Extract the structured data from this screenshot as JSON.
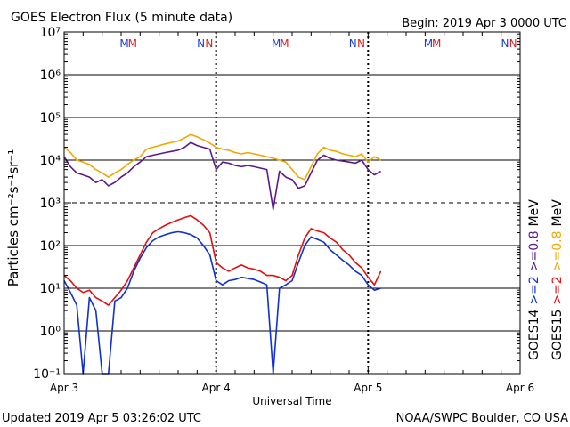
{
  "chart_data": {
    "type": "line",
    "title": "GOES Electron Flux (5 minute data)",
    "begin_label": "Begin: 2019 Apr 3 0000 UTC",
    "xlabel": "Universal Time",
    "ylabel": "Particles cm⁻²s⁻¹sr⁻¹",
    "yscale": "log",
    "ylim": [
      0.1,
      10000000
    ],
    "xlim_hours": [
      0,
      72
    ],
    "y_ticks": [
      {
        "label": "10⁻¹",
        "value": 0.1
      },
      {
        "label": "10⁰",
        "value": 1
      },
      {
        "label": "10¹",
        "value": 10
      },
      {
        "label": "10²",
        "value": 100
      },
      {
        "label": "10³",
        "value": 1000
      },
      {
        "label": "10⁴",
        "value": 10000
      },
      {
        "label": "10⁵",
        "value": 100000
      },
      {
        "label": "10⁶",
        "value": 1000000
      },
      {
        "label": "10⁷",
        "value": 10000000
      }
    ],
    "x_ticks": [
      {
        "label": "Apr 3",
        "hour": 0
      },
      {
        "label": "Apr 4",
        "hour": 24
      },
      {
        "label": "Apr 5",
        "hour": 48
      },
      {
        "label": "Apr 6",
        "hour": 72
      }
    ],
    "threshold_line": 1000,
    "day_markers": [
      {
        "hour": 9.5,
        "text": "M",
        "color": "#1a3fd6"
      },
      {
        "hour": 10.8,
        "text": "M",
        "color": "#e02020"
      },
      {
        "hour": 21.6,
        "text": "N",
        "color": "#1a3fd6"
      },
      {
        "hour": 22.9,
        "text": "N",
        "color": "#e02020"
      },
      {
        "hour": 33.5,
        "text": "M",
        "color": "#1a3fd6"
      },
      {
        "hour": 34.8,
        "text": "M",
        "color": "#e02020"
      },
      {
        "hour": 45.6,
        "text": "N",
        "color": "#1a3fd6"
      },
      {
        "hour": 46.9,
        "text": "N",
        "color": "#e02020"
      },
      {
        "hour": 57.5,
        "text": "M",
        "color": "#1a3fd6"
      },
      {
        "hour": 58.8,
        "text": "M",
        "color": "#e02020"
      },
      {
        "hour": 69.6,
        "text": "N",
        "color": "#1a3fd6"
      },
      {
        "hour": 70.9,
        "text": "N",
        "color": "#e02020"
      }
    ],
    "series": [
      {
        "name": "GOES15 >=0.8 MeV",
        "color": "#f0a800",
        "points": [
          [
            0,
            20000
          ],
          [
            1,
            15000
          ],
          [
            2,
            10000
          ],
          [
            3,
            9000
          ],
          [
            4,
            8000
          ],
          [
            5,
            6000
          ],
          [
            6,
            5000
          ],
          [
            7,
            4000
          ],
          [
            8,
            5000
          ],
          [
            9,
            6000
          ],
          [
            10,
            8000
          ],
          [
            11,
            10000
          ],
          [
            12,
            12000
          ],
          [
            13,
            18000
          ],
          [
            14,
            20000
          ],
          [
            15,
            22000
          ],
          [
            16,
            24000
          ],
          [
            17,
            26000
          ],
          [
            18,
            28000
          ],
          [
            19,
            33000
          ],
          [
            20,
            40000
          ],
          [
            21,
            35000
          ],
          [
            22,
            30000
          ],
          [
            23,
            25000
          ],
          [
            24,
            20000
          ],
          [
            25,
            18000
          ],
          [
            26,
            17000
          ],
          [
            27,
            15000
          ],
          [
            28,
            14000
          ],
          [
            29,
            15000
          ],
          [
            30,
            14000
          ],
          [
            31,
            13000
          ],
          [
            32,
            12000
          ],
          [
            33,
            11000
          ],
          [
            34,
            10000
          ],
          [
            35,
            9000
          ],
          [
            36,
            6000
          ],
          [
            37,
            4000
          ],
          [
            38,
            3500
          ],
          [
            39,
            7000
          ],
          [
            40,
            14000
          ],
          [
            41,
            20000
          ],
          [
            42,
            17000
          ],
          [
            43,
            16000
          ],
          [
            44,
            14000
          ],
          [
            45,
            13000
          ],
          [
            46,
            12000
          ],
          [
            47,
            14000
          ],
          [
            48,
            9000
          ],
          [
            49,
            12000
          ],
          [
            50,
            10000
          ]
        ]
      },
      {
        "name": "GOES14 >=0.8 MeV",
        "color": "#5a1a8a",
        "points": [
          [
            0,
            12000
          ],
          [
            1,
            7000
          ],
          [
            2,
            5000
          ],
          [
            3,
            4500
          ],
          [
            4,
            4000
          ],
          [
            5,
            3000
          ],
          [
            6,
            3500
          ],
          [
            7,
            2500
          ],
          [
            8,
            3000
          ],
          [
            9,
            4000
          ],
          [
            10,
            5000
          ],
          [
            11,
            7000
          ],
          [
            12,
            9000
          ],
          [
            13,
            12000
          ],
          [
            14,
            13000
          ],
          [
            15,
            14000
          ],
          [
            16,
            15000
          ],
          [
            17,
            16000
          ],
          [
            18,
            17000
          ],
          [
            19,
            20000
          ],
          [
            20,
            26000
          ],
          [
            21,
            22000
          ],
          [
            22,
            20000
          ],
          [
            23,
            18000
          ],
          [
            24,
            6000
          ],
          [
            25,
            9000
          ],
          [
            26,
            8500
          ],
          [
            27,
            7500
          ],
          [
            28,
            7000
          ],
          [
            29,
            7500
          ],
          [
            30,
            7000
          ],
          [
            31,
            6500
          ],
          [
            32,
            6000
          ],
          [
            33,
            700
          ],
          [
            34,
            5500
          ],
          [
            35,
            4000
          ],
          [
            36,
            3500
          ],
          [
            37,
            2200
          ],
          [
            38,
            2500
          ],
          [
            39,
            5000
          ],
          [
            40,
            10000
          ],
          [
            41,
            13000
          ],
          [
            42,
            11000
          ],
          [
            43,
            10000
          ],
          [
            44,
            9500
          ],
          [
            45,
            9000
          ],
          [
            46,
            8500
          ],
          [
            47,
            10000
          ],
          [
            48,
            6000
          ],
          [
            49,
            4500
          ],
          [
            50,
            5500
          ]
        ]
      },
      {
        "name": "GOES15 >=2 MeV",
        "color": "#e01010",
        "points": [
          [
            0,
            20
          ],
          [
            1,
            15
          ],
          [
            2,
            10
          ],
          [
            3,
            8
          ],
          [
            4,
            9
          ],
          [
            5,
            6
          ],
          [
            6,
            5
          ],
          [
            7,
            4
          ],
          [
            8,
            6
          ],
          [
            9,
            9
          ],
          [
            10,
            15
          ],
          [
            11,
            30
          ],
          [
            12,
            60
          ],
          [
            13,
            120
          ],
          [
            14,
            200
          ],
          [
            15,
            250
          ],
          [
            16,
            300
          ],
          [
            17,
            350
          ],
          [
            18,
            400
          ],
          [
            19,
            450
          ],
          [
            20,
            500
          ],
          [
            21,
            400
          ],
          [
            22,
            300
          ],
          [
            23,
            200
          ],
          [
            24,
            40
          ],
          [
            25,
            30
          ],
          [
            26,
            25
          ],
          [
            27,
            30
          ],
          [
            28,
            35
          ],
          [
            29,
            30
          ],
          [
            30,
            28
          ],
          [
            31,
            25
          ],
          [
            32,
            20
          ],
          [
            33,
            20
          ],
          [
            34,
            18
          ],
          [
            35,
            15
          ],
          [
            36,
            20
          ],
          [
            37,
            60
          ],
          [
            38,
            150
          ],
          [
            39,
            250
          ],
          [
            40,
            220
          ],
          [
            41,
            200
          ],
          [
            42,
            150
          ],
          [
            43,
            120
          ],
          [
            44,
            80
          ],
          [
            45,
            60
          ],
          [
            46,
            40
          ],
          [
            47,
            30
          ],
          [
            48,
            18
          ],
          [
            49,
            12
          ],
          [
            50,
            25
          ]
        ]
      },
      {
        "name": "GOES14 >=2 MeV",
        "color": "#1030d0",
        "points": [
          [
            0,
            15
          ],
          [
            1,
            8
          ],
          [
            2,
            4
          ],
          [
            3,
            0.1
          ],
          [
            4,
            6
          ],
          [
            5,
            3
          ],
          [
            6,
            0.1
          ],
          [
            7,
            0.1
          ],
          [
            8,
            5
          ],
          [
            9,
            6
          ],
          [
            10,
            10
          ],
          [
            11,
            25
          ],
          [
            12,
            50
          ],
          [
            13,
            90
          ],
          [
            14,
            130
          ],
          [
            15,
            160
          ],
          [
            16,
            180
          ],
          [
            17,
            200
          ],
          [
            18,
            210
          ],
          [
            19,
            200
          ],
          [
            20,
            180
          ],
          [
            21,
            150
          ],
          [
            22,
            100
          ],
          [
            23,
            60
          ],
          [
            24,
            15
          ],
          [
            25,
            12
          ],
          [
            26,
            15
          ],
          [
            27,
            16
          ],
          [
            28,
            18
          ],
          [
            29,
            17
          ],
          [
            30,
            16
          ],
          [
            31,
            14
          ],
          [
            32,
            12
          ],
          [
            33,
            0.1
          ],
          [
            34,
            10
          ],
          [
            35,
            12
          ],
          [
            36,
            15
          ],
          [
            37,
            40
          ],
          [
            38,
            100
          ],
          [
            39,
            160
          ],
          [
            40,
            140
          ],
          [
            41,
            120
          ],
          [
            42,
            80
          ],
          [
            43,
            60
          ],
          [
            44,
            45
          ],
          [
            45,
            35
          ],
          [
            46,
            25
          ],
          [
            47,
            20
          ],
          [
            48,
            12
          ],
          [
            49,
            9
          ],
          [
            50,
            10
          ]
        ]
      }
    ],
    "right_legend": [
      {
        "text": "GOES14",
        "color": "#000000"
      },
      {
        "text": ">=2",
        "color": "#1030d0"
      },
      {
        "text": ">=0.8",
        "color": "#5a1a8a"
      },
      {
        "text": "MeV",
        "color": "#000000"
      },
      {
        "text": "GOES15",
        "color": "#000000"
      },
      {
        "text": ">=2",
        "color": "#e01010"
      },
      {
        "text": ">=0.8",
        "color": "#f0a800"
      },
      {
        "text": "MeV",
        "color": "#000000"
      }
    ]
  },
  "footer": {
    "updated": "Updated 2019 Apr  5 03:26:02 UTC",
    "source": "NOAA/SWPC Boulder, CO USA"
  }
}
